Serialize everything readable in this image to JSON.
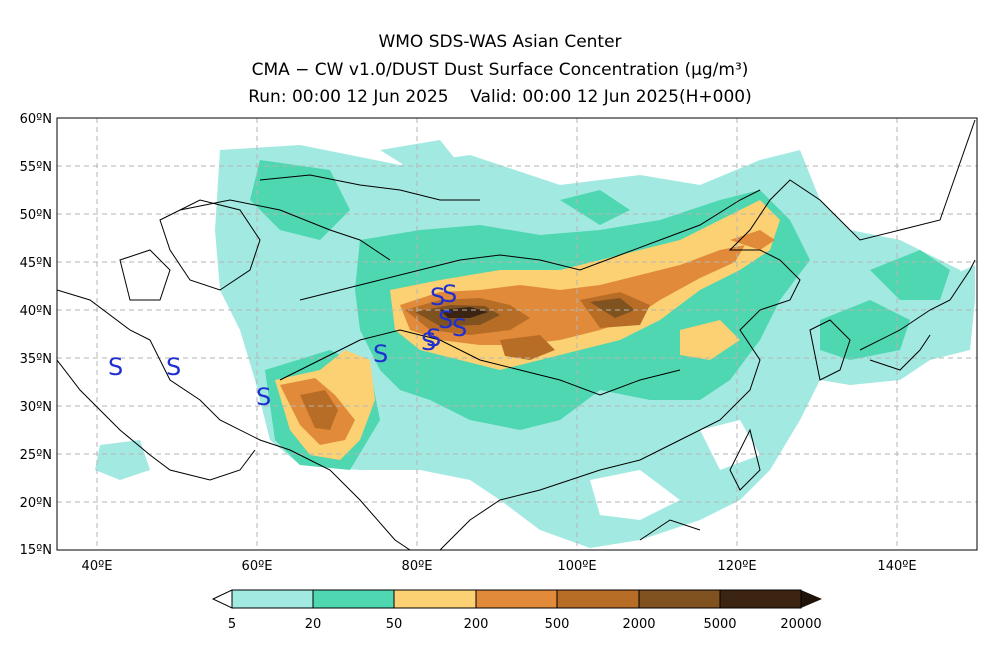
{
  "title": {
    "line1": "WMO SDS-WAS Asian Center",
    "line2": "CMA − CW v1.0/DUST Dust Surface Concentration (μg/m³)",
    "line3": "Run: 00:00 12 Jun 2025    Valid: 00:00 12 Jun 2025(H+000)"
  },
  "map": {
    "lat_labels": [
      "60ºN",
      "55ºN",
      "50ºN",
      "45ºN",
      "40ºN",
      "35ºN",
      "30ºN",
      "25ºN",
      "20ºN",
      "15ºN"
    ],
    "lon_labels": [
      "40ºE",
      "60ºE",
      "80ºE",
      "100ºE",
      "120ºE",
      "140ºE"
    ],
    "lon_range": [
      35,
      150
    ],
    "lat_range": [
      15,
      60
    ],
    "grid": true,
    "storm_symbol": "S",
    "storm_symbol_color": "#1f2fd0"
  },
  "colorbar": {
    "labels": [
      "5",
      "20",
      "50",
      "200",
      "500",
      "2000",
      "5000",
      "20000"
    ],
    "colors": [
      "#a2e9e1",
      "#4ed7b0",
      "#fbd173",
      "#e08a3a",
      "#b86d27",
      "#7f5220",
      "#3b2412"
    ],
    "extend_low_color": "#ffffff",
    "extend_high_color": "#1e1209"
  }
}
